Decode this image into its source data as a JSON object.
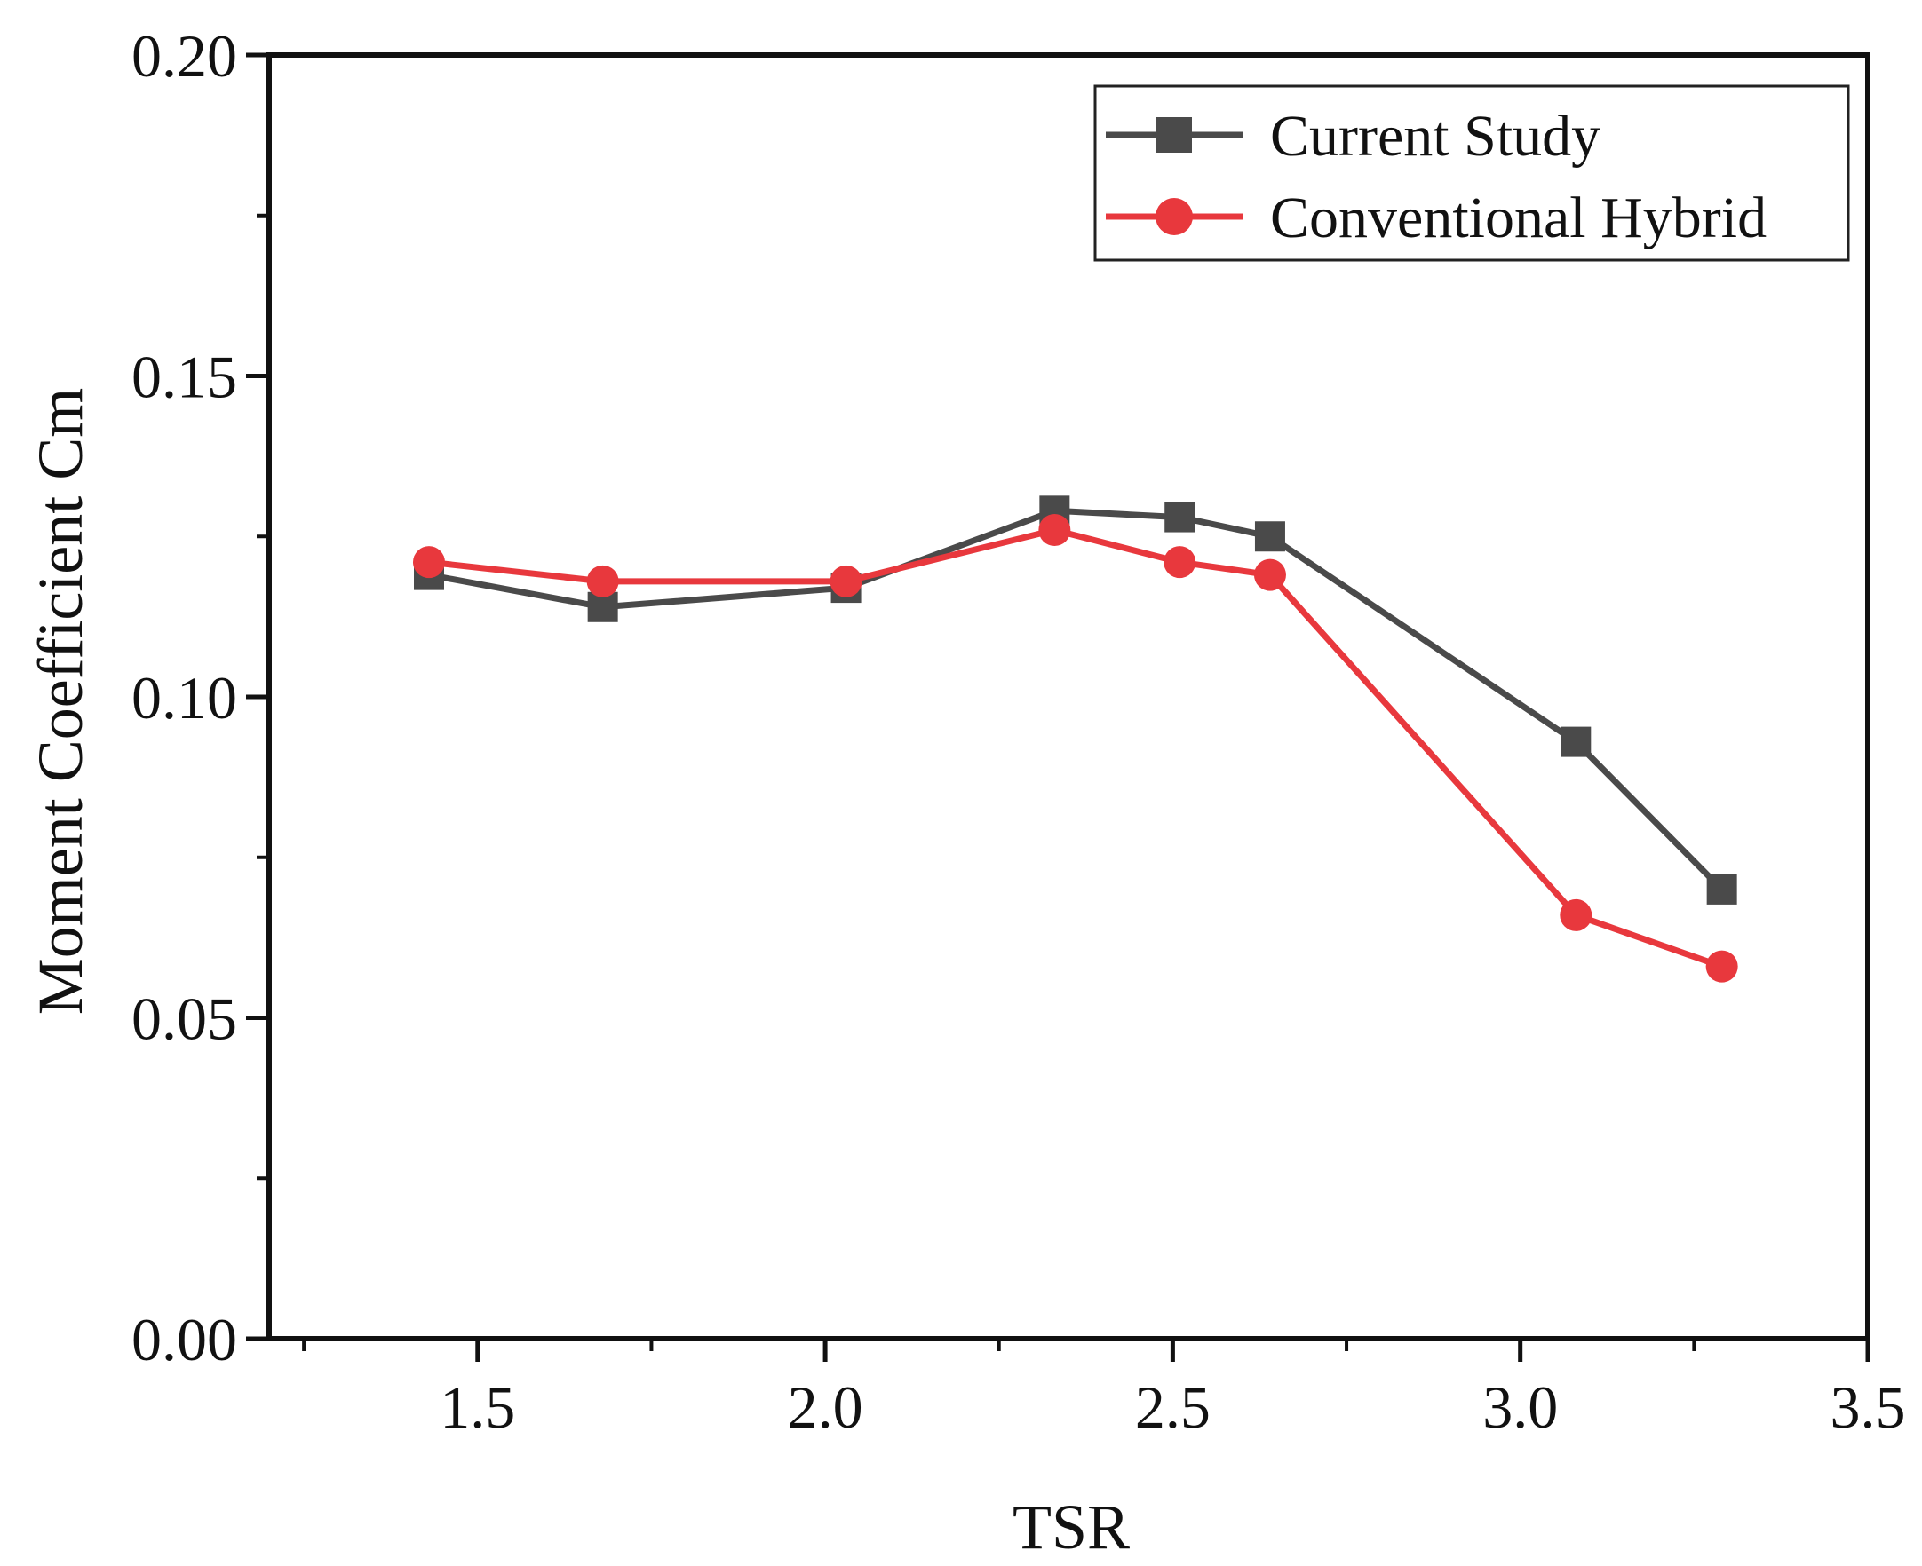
{
  "chart_data": {
    "type": "line",
    "title": "",
    "xlabel": "TSR",
    "ylabel": "Moment Coefficient Cm",
    "xlim": [
      1.2,
      3.5
    ],
    "ylim": [
      0.0,
      0.2
    ],
    "x_ticks": [
      1.5,
      2.0,
      2.5,
      3.0,
      3.5
    ],
    "x_tick_labels": [
      "1.5",
      "2.0",
      "2.5",
      "3.0",
      "3.5"
    ],
    "y_ticks": [
      0.0,
      0.05,
      0.1,
      0.15,
      0.2
    ],
    "y_tick_labels": [
      "0.00",
      "0.05",
      "0.10",
      "0.15",
      "0.20"
    ],
    "grid": false,
    "legend_position": "top-right",
    "series": [
      {
        "name": "Current Study",
        "color": "#4a4a4a",
        "marker": "square",
        "x": [
          1.43,
          1.68,
          2.03,
          2.33,
          2.51,
          2.64,
          3.08,
          3.29
        ],
        "values": [
          0.119,
          0.114,
          0.117,
          0.129,
          0.128,
          0.125,
          0.093,
          0.07
        ]
      },
      {
        "name": "Conventional Hybrid",
        "color": "#e8383d",
        "marker": "circle",
        "x": [
          1.43,
          1.68,
          2.03,
          2.33,
          2.51,
          2.64,
          3.08,
          3.29
        ],
        "values": [
          0.121,
          0.118,
          0.118,
          0.126,
          0.121,
          0.119,
          0.066,
          0.058
        ]
      }
    ]
  }
}
